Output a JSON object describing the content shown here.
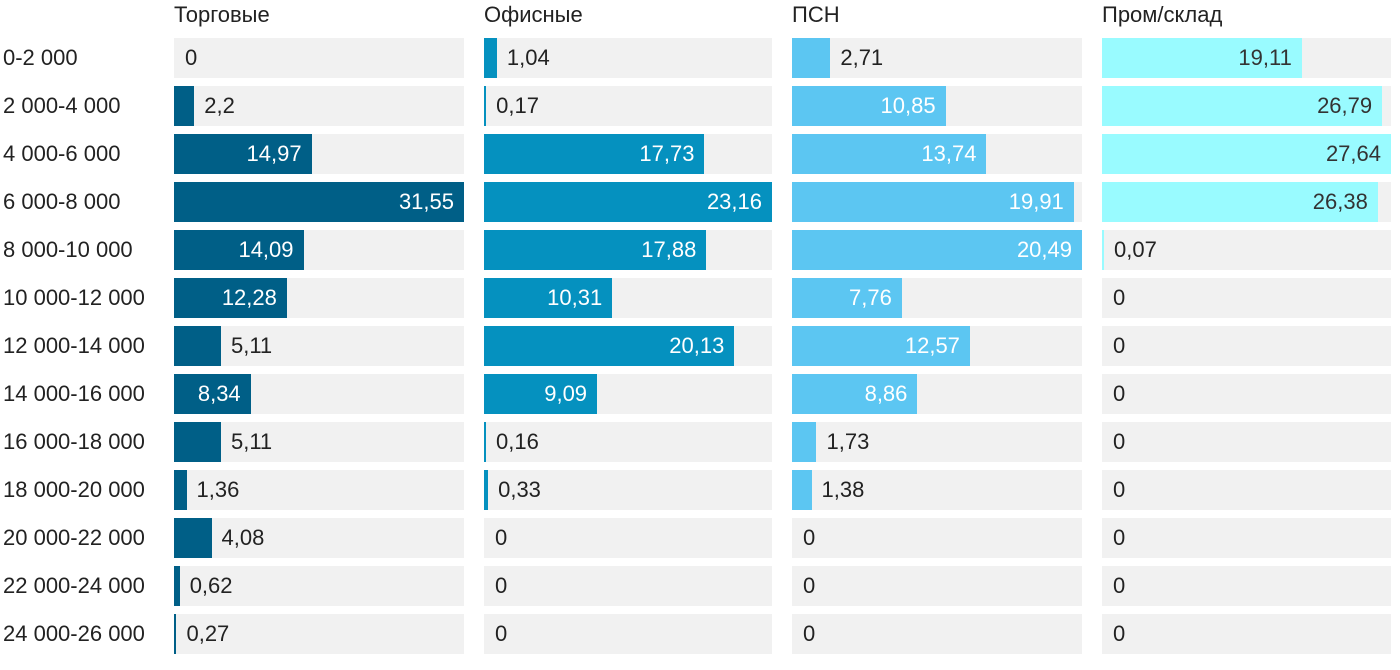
{
  "chart_data": {
    "type": "bar",
    "orientation": "horizontal",
    "layout": "small-multiples",
    "categories": [
      "0-2 000",
      "2 000-4 000",
      "4 000-6 000",
      "6 000-8 000",
      "8 000-10 000",
      "10 000-12 000",
      "12 000-14 000",
      "14 000-16 000",
      "16 000-18 000",
      "18 000-20 000",
      "20 000-22 000",
      "22 000-24 000",
      "24 000-26 000"
    ],
    "series": [
      {
        "name": "Торговые",
        "color": "#005f87",
        "max": 31.55,
        "values": [
          0,
          2.2,
          14.97,
          31.55,
          14.09,
          12.28,
          5.11,
          8.34,
          5.11,
          1.36,
          4.08,
          0.62,
          0.27
        ],
        "labels": [
          "0",
          "2,2",
          "14,97",
          "31,55",
          "14,09",
          "12,28",
          "5,11",
          "8,34",
          "5,11",
          "1,36",
          "4,08",
          "0,62",
          "0,27"
        ]
      },
      {
        "name": "Офисные",
        "color": "#0591bf",
        "max": 23.16,
        "values": [
          1.04,
          0.17,
          17.73,
          23.16,
          17.88,
          10.31,
          20.13,
          9.09,
          0.16,
          0.33,
          0,
          0,
          0
        ],
        "labels": [
          "1,04",
          "0,17",
          "17,73",
          "23,16",
          "17,88",
          "10,31",
          "20,13",
          "9,09",
          "0,16",
          "0,33",
          "0",
          "0",
          "0"
        ]
      },
      {
        "name": "ПСН",
        "color": "#5cc6f2",
        "max": 20.49,
        "values": [
          2.71,
          10.85,
          13.74,
          19.91,
          20.49,
          7.76,
          12.57,
          8.86,
          1.73,
          1.38,
          0,
          0,
          0
        ],
        "labels": [
          "2,71",
          "10,85",
          "13,74",
          "19,91",
          "20,49",
          "7,76",
          "12,57",
          "8,86",
          "1,73",
          "1,38",
          "0",
          "0",
          "0"
        ]
      },
      {
        "name": "Пром/склад",
        "color": "#99fbff",
        "max": 27.64,
        "values": [
          19.11,
          26.79,
          27.64,
          26.38,
          0.07,
          0,
          0,
          0,
          0,
          0,
          0,
          0,
          0
        ],
        "labels": [
          "19,11",
          "26,79",
          "27,64",
          "26,38",
          "0,07",
          "0",
          "0",
          "0",
          "0",
          "0",
          "0",
          "0",
          "0"
        ]
      }
    ],
    "xlabel": "",
    "ylabel": "",
    "legend": "none",
    "grid": false,
    "value_labels": true
  }
}
